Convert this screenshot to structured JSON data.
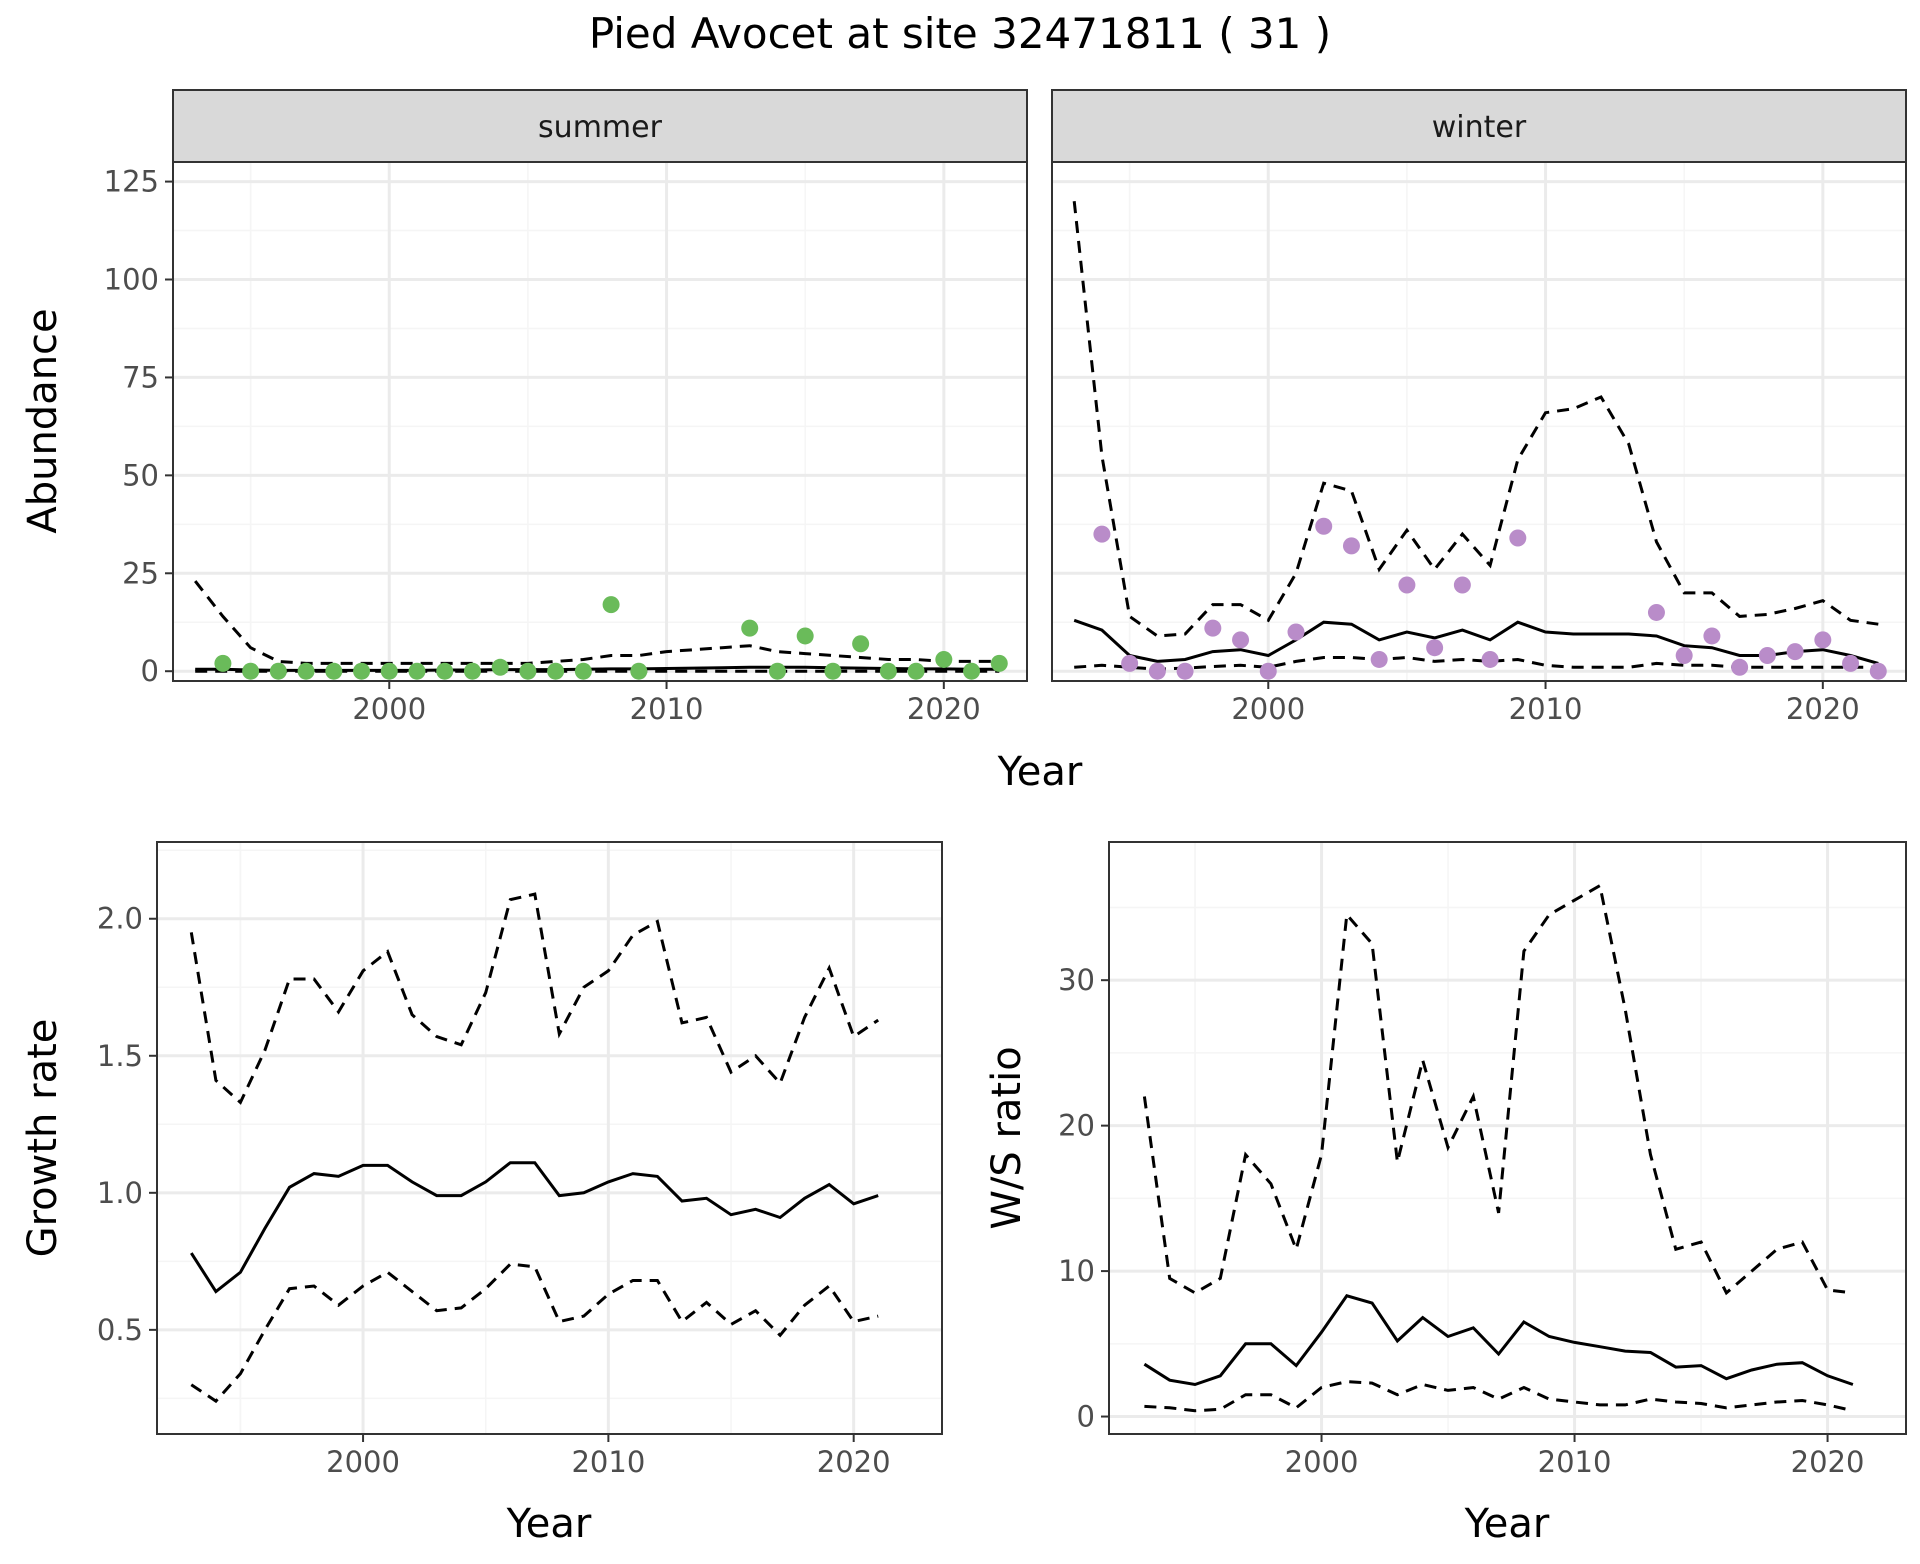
{
  "figure": {
    "title": "Pied Avocet at site 32471811 ( 31 )"
  },
  "colors": {
    "summer_points": "#6ABB5A",
    "winter_points": "#B98CC9",
    "line": "#000000",
    "strip_fill": "#D9D9D9",
    "grid_major": "#EBEBEB",
    "grid_minor": "#F5F5F5"
  },
  "chart_data": [
    {
      "id": "abundance",
      "type": "line",
      "facets": [
        "summer",
        "winter"
      ],
      "xlabel": "Year",
      "ylabel": "Abundance",
      "xlim": [
        1992.2,
        2023.0
      ],
      "ylim": [
        -2.5,
        130
      ],
      "xticks": [
        2000,
        2010,
        2020
      ],
      "yticks": [
        0,
        25,
        50,
        75,
        100,
        125
      ],
      "grid": true,
      "panels": [
        {
          "facet": "summer",
          "observed_years": [
            1994,
            1995,
            1996,
            1997,
            1998,
            1999,
            2000,
            2001,
            2002,
            2003,
            2004,
            2005,
            2006,
            2007,
            2008,
            2009,
            2013,
            2014,
            2015,
            2016,
            2017,
            2018,
            2019,
            2020,
            2021,
            2022
          ],
          "observed_values": [
            2,
            0,
            0,
            0,
            0,
            0,
            0,
            0,
            0,
            0,
            1,
            0,
            0,
            0,
            17,
            0,
            11,
            0,
            9,
            0,
            7,
            0,
            0,
            3,
            0,
            2
          ],
          "fit_years": [
            1993,
            1994,
            1995,
            1996,
            1997,
            1998,
            1999,
            2000,
            2001,
            2002,
            2003,
            2004,
            2005,
            2006,
            2007,
            2008,
            2009,
            2010,
            2011,
            2012,
            2013,
            2014,
            2015,
            2016,
            2017,
            2018,
            2019,
            2020,
            2021,
            2022
          ],
          "estimate": [
            0.5,
            0.5,
            0.3,
            0.2,
            0.2,
            0.2,
            0.2,
            0.2,
            0.2,
            0.3,
            0.3,
            0.4,
            0.4,
            0.4,
            0.5,
            0.6,
            0.6,
            0.7,
            0.8,
            0.9,
            1.0,
            1.0,
            1.0,
            0.9,
            0.8,
            0.7,
            0.6,
            0.6,
            0.5,
            0.5
          ],
          "upper": [
            23,
            14,
            6,
            2.5,
            2,
            2,
            2,
            2,
            2,
            2,
            2,
            2,
            2,
            2.5,
            3,
            4,
            4,
            5,
            5.5,
            6,
            6.5,
            5,
            4.5,
            4,
            3.5,
            3,
            3,
            2.5,
            2.5,
            2.5
          ],
          "lower": [
            0,
            0,
            0,
            0,
            0,
            0,
            0,
            0,
            0,
            0,
            0,
            0,
            0,
            0,
            0,
            0,
            0,
            0,
            0,
            0,
            0,
            0,
            0,
            0,
            0,
            0,
            0,
            0,
            0,
            0
          ]
        },
        {
          "facet": "winter",
          "observed_years": [
            1994,
            1995,
            1996,
            1997,
            1998,
            1999,
            2000,
            2001,
            2002,
            2003,
            2004,
            2005,
            2006,
            2007,
            2008,
            2009,
            2014,
            2015,
            2016,
            2017,
            2018,
            2019,
            2020,
            2021,
            2022
          ],
          "observed_values": [
            35,
            2,
            0,
            0,
            11,
            8,
            0,
            10,
            37,
            32,
            3,
            22,
            6,
            22,
            3,
            34,
            15,
            4,
            9,
            1,
            4,
            5,
            8,
            2,
            0
          ],
          "fit_years": [
            1993,
            1994,
            1995,
            1996,
            1997,
            1998,
            1999,
            2000,
            2001,
            2002,
            2003,
            2004,
            2005,
            2006,
            2007,
            2008,
            2009,
            2010,
            2011,
            2012,
            2013,
            2014,
            2015,
            2016,
            2017,
            2018,
            2019,
            2020,
            2021,
            2022
          ],
          "estimate": [
            13,
            10.5,
            4,
            2.5,
            3,
            5,
            5.5,
            4,
            8,
            12.5,
            12,
            8,
            10,
            8.5,
            10.5,
            8,
            12.5,
            10,
            9.5,
            9.5,
            9.5,
            9,
            6.5,
            6,
            4,
            4,
            5,
            5.5,
            4,
            2
          ],
          "upper": [
            120,
            55,
            14,
            9,
            9.5,
            17,
            17,
            13,
            25,
            48,
            46,
            26,
            36,
            26,
            35,
            27,
            54,
            66,
            67,
            70,
            58,
            33,
            20,
            20,
            14,
            14.5,
            16,
            18,
            13,
            12
          ],
          "lower": [
            1,
            1.5,
            1,
            0.5,
            0.8,
            1.2,
            1.5,
            1,
            2.5,
            3.5,
            3.5,
            3,
            3.5,
            2.5,
            3,
            2.5,
            3,
            1.5,
            1,
            1,
            1,
            2,
            1.5,
            1.5,
            1,
            1,
            1,
            1,
            1,
            1
          ]
        }
      ]
    },
    {
      "id": "growth",
      "type": "line",
      "xlabel": "Year",
      "ylabel": "Growth rate",
      "xlim": [
        1991.6,
        2023.6
      ],
      "ylim": [
        0.12,
        2.28
      ],
      "xticks": [
        2000,
        2010,
        2020
      ],
      "yticks": [
        0.5,
        1.0,
        1.5,
        2.0
      ],
      "ytick_labels": [
        "0.5",
        "1.0",
        "1.5",
        "2.0"
      ],
      "grid": true,
      "years": [
        1993,
        1994,
        1995,
        1996,
        1997,
        1998,
        1999,
        2000,
        2001,
        2002,
        2003,
        2004,
        2005,
        2006,
        2007,
        2008,
        2009,
        2010,
        2011,
        2012,
        2013,
        2014,
        2015,
        2016,
        2017,
        2018,
        2019,
        2020,
        2021
      ],
      "estimate": [
        0.78,
        0.64,
        0.71,
        0.87,
        1.02,
        1.07,
        1.06,
        1.1,
        1.1,
        1.04,
        0.99,
        0.99,
        1.04,
        1.11,
        1.11,
        0.99,
        1.0,
        1.04,
        1.07,
        1.06,
        0.97,
        0.98,
        0.92,
        0.94,
        0.91,
        0.98,
        1.03,
        0.96,
        0.99
      ],
      "upper": [
        1.95,
        1.41,
        1.33,
        1.52,
        1.78,
        1.78,
        1.66,
        1.81,
        1.88,
        1.65,
        1.57,
        1.54,
        1.73,
        2.07,
        2.09,
        1.58,
        1.75,
        1.81,
        1.94,
        1.99,
        1.62,
        1.64,
        1.44,
        1.5,
        1.4,
        1.64,
        1.82,
        1.57,
        1.63
      ],
      "lower": [
        0.3,
        0.24,
        0.34,
        0.5,
        0.65,
        0.66,
        0.59,
        0.66,
        0.71,
        0.64,
        0.57,
        0.58,
        0.65,
        0.74,
        0.73,
        0.53,
        0.55,
        0.63,
        0.68,
        0.68,
        0.53,
        0.6,
        0.52,
        0.57,
        0.48,
        0.59,
        0.66,
        0.53,
        0.55
      ]
    },
    {
      "id": "ws_ratio",
      "type": "line",
      "xlabel": "Year",
      "ylabel": "W/S ratio",
      "xlim": [
        1991.6,
        2023.1
      ],
      "ylim": [
        -1.2,
        39.5
      ],
      "xticks": [
        2000,
        2010,
        2020
      ],
      "yticks": [
        0,
        10,
        20,
        30
      ],
      "grid": true,
      "years": [
        1993,
        1994,
        1995,
        1996,
        1997,
        1998,
        1999,
        2000,
        2001,
        2002,
        2003,
        2004,
        2005,
        2006,
        2007,
        2008,
        2009,
        2010,
        2011,
        2012,
        2013,
        2014,
        2015,
        2016,
        2017,
        2018,
        2019,
        2020,
        2021
      ],
      "estimate": [
        3.6,
        2.5,
        2.2,
        2.8,
        5.0,
        5.0,
        3.5,
        5.8,
        8.3,
        7.8,
        5.2,
        6.8,
        5.5,
        6.1,
        4.3,
        6.5,
        5.5,
        5.1,
        4.8,
        4.5,
        4.4,
        3.4,
        3.5,
        2.6,
        3.2,
        3.6,
        3.7,
        2.8,
        2.2
      ],
      "upper": [
        22,
        9.5,
        8.5,
        9.5,
        18,
        16,
        11.5,
        18,
        34.5,
        32.5,
        17.5,
        24.5,
        18.5,
        22,
        14,
        32,
        34.5,
        35.5,
        36.5,
        28,
        18,
        11.5,
        12,
        8.5,
        10,
        11.5,
        12,
        8.7,
        8.5
      ],
      "lower": [
        0.7,
        0.6,
        0.4,
        0.5,
        1.5,
        1.5,
        0.6,
        2.0,
        2.4,
        2.3,
        1.5,
        2.2,
        1.8,
        2.0,
        1.2,
        2.0,
        1.2,
        1.0,
        0.8,
        0.8,
        1.2,
        1.0,
        0.9,
        0.6,
        0.8,
        1.0,
        1.1,
        0.8,
        0.4
      ]
    }
  ]
}
